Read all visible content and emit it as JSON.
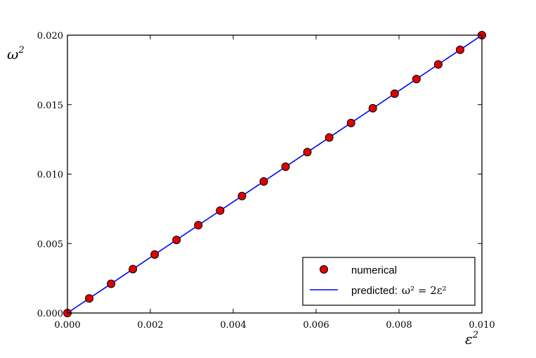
{
  "chart_data": {
    "type": "scatter",
    "xlabel": "ε",
    "xlabel_sup": "2",
    "ylabel": "ω",
    "ylabel_sup": "2",
    "xlim": [
      0,
      0.01
    ],
    "ylim": [
      0,
      0.02
    ],
    "x_ticks": [
      "0.000",
      "0.002",
      "0.004",
      "0.006",
      "0.008",
      "0.010"
    ],
    "y_ticks": [
      "0.000",
      "0.005",
      "0.010",
      "0.015",
      "0.020"
    ],
    "grid": false,
    "legend_position": "bottom-right",
    "series": [
      {
        "name": "numerical",
        "kind": "markers",
        "color": "#e00000",
        "edge_color": "#000000",
        "x": [
          0.0,
          0.000526,
          0.001053,
          0.001579,
          0.002105,
          0.002632,
          0.003158,
          0.003684,
          0.004211,
          0.004737,
          0.005263,
          0.005789,
          0.006316,
          0.006842,
          0.007368,
          0.007895,
          0.008421,
          0.008947,
          0.009474,
          0.01
        ],
        "y": [
          0.0,
          0.00105,
          0.0021,
          0.00316,
          0.00421,
          0.00526,
          0.00632,
          0.00737,
          0.00842,
          0.00947,
          0.01053,
          0.01158,
          0.01263,
          0.01368,
          0.01474,
          0.01579,
          0.01684,
          0.01789,
          0.01895,
          0.02
        ]
      },
      {
        "name": "predicted:",
        "kind": "line",
        "color": "#0000ff",
        "x": [
          0.0,
          0.01
        ],
        "y": [
          0.0,
          0.02
        ]
      }
    ],
    "legend_math": "ω² = 2ε²"
  }
}
